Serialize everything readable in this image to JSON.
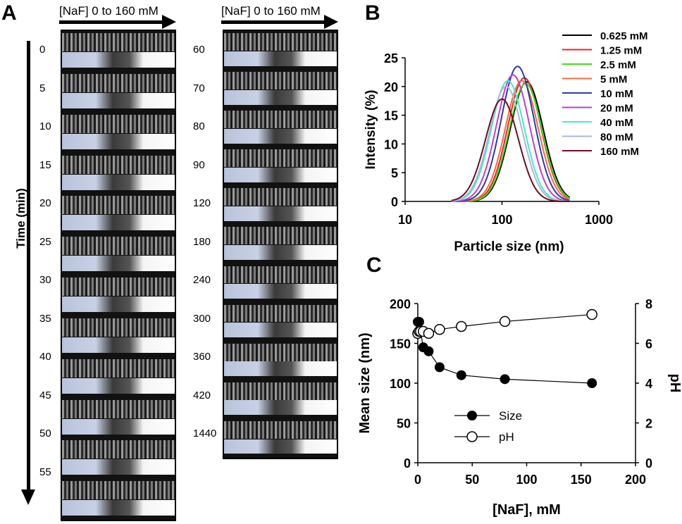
{
  "panel_a": {
    "letter": "A",
    "header_left": "[NaF] 0 to 160 mM",
    "header_right": "[NaF] 0 to 160 mM",
    "y_axis_label": "Time (min)",
    "times_left": [
      "0",
      "5",
      "10",
      "15",
      "20",
      "25",
      "30",
      "35",
      "40",
      "45",
      "50",
      "55"
    ],
    "times_right": [
      "60",
      "70",
      "80",
      "90",
      "120",
      "180",
      "240",
      "300",
      "360",
      "420",
      "1440"
    ]
  },
  "chart_data": [
    {
      "panel": "B",
      "type": "line",
      "xlabel": "Particle size (nm)",
      "ylabel": "Intensity (%)",
      "x_scale": "log",
      "xlim": [
        10,
        1000
      ],
      "ylim": [
        0,
        25
      ],
      "xticks": [
        "10",
        "100",
        "1000"
      ],
      "yticks": [
        "0",
        "5",
        "10",
        "15",
        "20",
        "25"
      ],
      "legend_position": "top-right",
      "series": [
        {
          "name": "0.625 mM",
          "color": "#000000",
          "center": 180,
          "peak": 20.8
        },
        {
          "name": "1.25 mM",
          "color": "#e8262a",
          "center": 170,
          "peak": 21.5
        },
        {
          "name": "2.5 mM",
          "color": "#3fe016",
          "center": 175,
          "peak": 20.5
        },
        {
          "name": "5 mM",
          "color": "#f06a4a",
          "center": 160,
          "peak": 21.0
        },
        {
          "name": "10 mM",
          "color": "#2b3aa8",
          "center": 145,
          "peak": 23.5
        },
        {
          "name": "20 mM",
          "color": "#c03ec0",
          "center": 130,
          "peak": 22.0
        },
        {
          "name": "40 mM",
          "color": "#48e8c8",
          "center": 115,
          "peak": 21.0
        },
        {
          "name": "80 mM",
          "color": "#a8b8d8",
          "center": 110,
          "peak": 20.0
        },
        {
          "name": "160 mM",
          "color": "#6a1020",
          "center": 100,
          "peak": 17.8
        }
      ]
    },
    {
      "panel": "C",
      "type": "scatter",
      "xlabel": "[NaF], mM",
      "ylabel": "Mean size (nm)",
      "y2label": "pH",
      "xlim": [
        0,
        200
      ],
      "ylim": [
        0,
        200
      ],
      "y2lim": [
        0,
        8
      ],
      "xticks": [
        "0",
        "50",
        "100",
        "150",
        "200"
      ],
      "yticks": [
        "0",
        "50",
        "100",
        "150",
        "200"
      ],
      "y2ticks": [
        "0",
        "2",
        "4",
        "6",
        "8"
      ],
      "legend_position": "bottom-left",
      "series": [
        {
          "name": "Size",
          "marker": "filled-circle",
          "axis": "left",
          "x": [
            0,
            1.25,
            2.5,
            5,
            10,
            20,
            40,
            80,
            160
          ],
          "y": [
            177,
            177,
            165,
            145,
            140,
            120,
            110,
            105,
            100
          ]
        },
        {
          "name": "pH",
          "marker": "open-circle",
          "axis": "right",
          "x": [
            0,
            1.25,
            2.5,
            5,
            10,
            20,
            40,
            80,
            160
          ],
          "y": [
            6.5,
            6.6,
            6.6,
            6.6,
            6.5,
            6.7,
            6.85,
            7.1,
            7.45
          ]
        }
      ]
    }
  ],
  "panel_labels": {
    "b": "B",
    "c": "C"
  }
}
